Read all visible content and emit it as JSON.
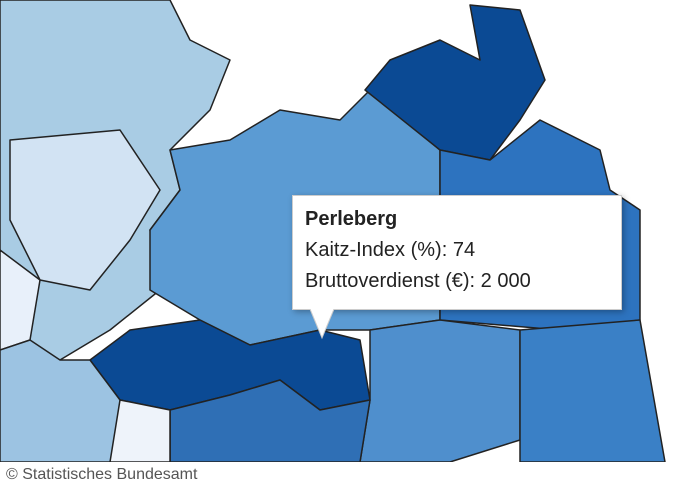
{
  "tooltip": {
    "title": "Perleberg",
    "rows": [
      {
        "label": "Kaitz-Index (%):",
        "value": 74
      },
      {
        "label": "Bruttoverdienst (€):",
        "value": {
          "value": 2000,
          "label": "2 000"
        }
      }
    ]
  },
  "footer": {
    "copyright": "© Statistisches Bundesamt"
  }
}
